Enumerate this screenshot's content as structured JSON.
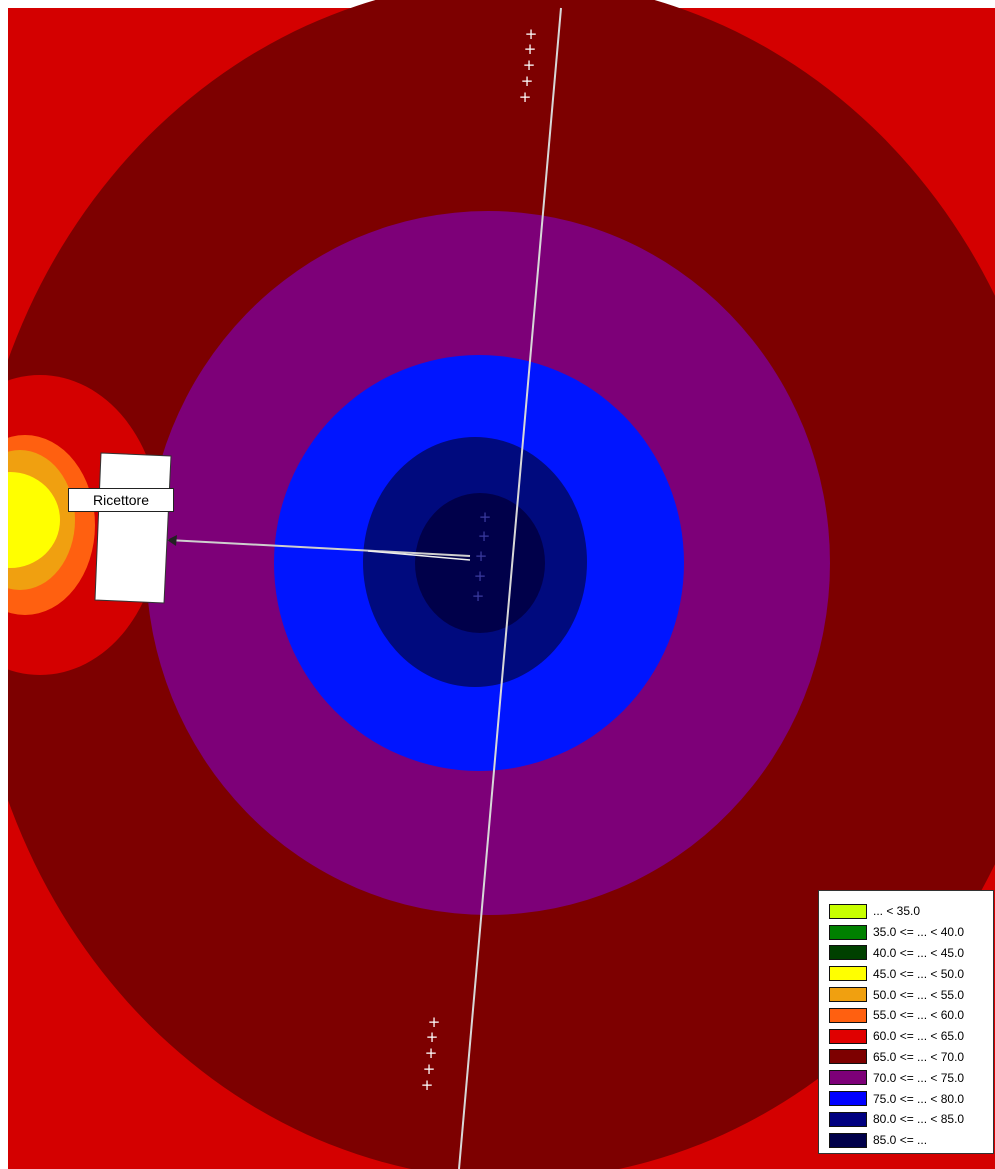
{
  "map": {
    "receiver_label": "Ricettore",
    "source_marker_glyph": "+",
    "colors": {
      "background": "#d40000",
      "contour_65_70": "#7d0000",
      "contour_70_75": "#7d0078",
      "contour_75_80": "#0015ff",
      "contour_80_85": "#000a7e",
      "contour_85_up": "#00004a",
      "near_receiver_yellow": "#ffff00",
      "near_receiver_orange": "#f0a010",
      "near_receiver_red_orange": "#ff6010",
      "road_line": "#d8d8d8",
      "building": "#ffffff"
    }
  },
  "legend": {
    "items": [
      {
        "label": "... < 35.0",
        "color": "#c8ff00"
      },
      {
        "label": "35.0 <= ... < 40.0",
        "color": "#008000"
      },
      {
        "label": "40.0 <= ... < 45.0",
        "color": "#004000"
      },
      {
        "label": "45.0 <= ... < 50.0",
        "color": "#ffff00"
      },
      {
        "label": "50.0 <= ... < 55.0",
        "color": "#f0a010"
      },
      {
        "label": "55.0 <= ... < 60.0",
        "color": "#ff6010"
      },
      {
        "label": "60.0 <= ... < 65.0",
        "color": "#e00000"
      },
      {
        "label": "65.0 <= ... < 70.0",
        "color": "#7d0000"
      },
      {
        "label": "70.0 <= ... < 75.0",
        "color": "#7d0078"
      },
      {
        "label": "75.0 <= ... < 80.0",
        "color": "#0000ff"
      },
      {
        "label": "80.0 <= ... < 85.0",
        "color": "#000080"
      },
      {
        "label": "85.0 <= ...",
        "color": "#00004a"
      }
    ]
  }
}
